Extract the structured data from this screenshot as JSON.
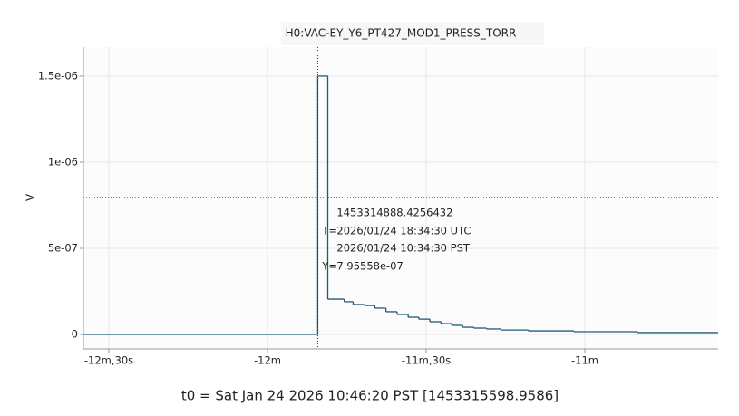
{
  "chart_data": {
    "type": "step",
    "title": "H0:VAC-EY_Y6_PT427_MOD1_PRESS_TORR",
    "y_label": "V",
    "footer": "t0 = Sat Jan 24 2026 10:46:20 PST [1453315598.9586]",
    "x": [
      -755,
      -710.5,
      -708.6,
      -705.5,
      -703.8,
      -701.7,
      -699.7,
      -697.6,
      -695.5,
      -693.4,
      -691.4,
      -689.3,
      -687.2,
      -685.2,
      -683.1,
      -681.0,
      -678.6,
      -675.9,
      -670.7,
      -662.1,
      -650.0,
      -635
    ],
    "series": [
      {
        "color": "#1f5a7a",
        "values": [
          0,
          1.5e-06,
          2.05e-07,
          1.9e-07,
          1.74e-07,
          1.68e-07,
          1.53e-07,
          1.32e-07,
          1.16e-07,
          1e-07,
          8.9e-08,
          7.4e-08,
          6.3e-08,
          5.3e-08,
          4.2e-08,
          3.7e-08,
          3.2e-08,
          2.6e-08,
          2.1e-08,
          1.6e-08,
          1.1e-08,
          1.1e-08
        ]
      }
    ],
    "xlim": [
      -754.8,
      -634.8
    ],
    "ylim": [
      -8.4e-08,
      1.668e-06
    ],
    "xticks": [
      {
        "value": -750,
        "label": "-12m,30s"
      },
      {
        "value": -720,
        "label": "-12m"
      },
      {
        "value": -690,
        "label": "-11m,30s"
      },
      {
        "value": -660,
        "label": "-11m"
      }
    ],
    "yticks": [
      0,
      {
        "value": 5e-07,
        "label": "5e-07"
      },
      {
        "value": 1e-06,
        "label": "1e-06"
      },
      {
        "value": 1.5e-06,
        "label": "1.5e-06"
      }
    ],
    "grid": true,
    "cursor": {
      "x": -710.5,
      "y": 7.95558e-07,
      "gps": "1453314888.4256432",
      "t_prefix": "T=",
      "utc": "2026/01/24 18:34:30 UTC",
      "local": "2026/01/24 10:34:30 PST",
      "y_prefix": "Y=",
      "y_text": "7.95558e-07"
    }
  }
}
